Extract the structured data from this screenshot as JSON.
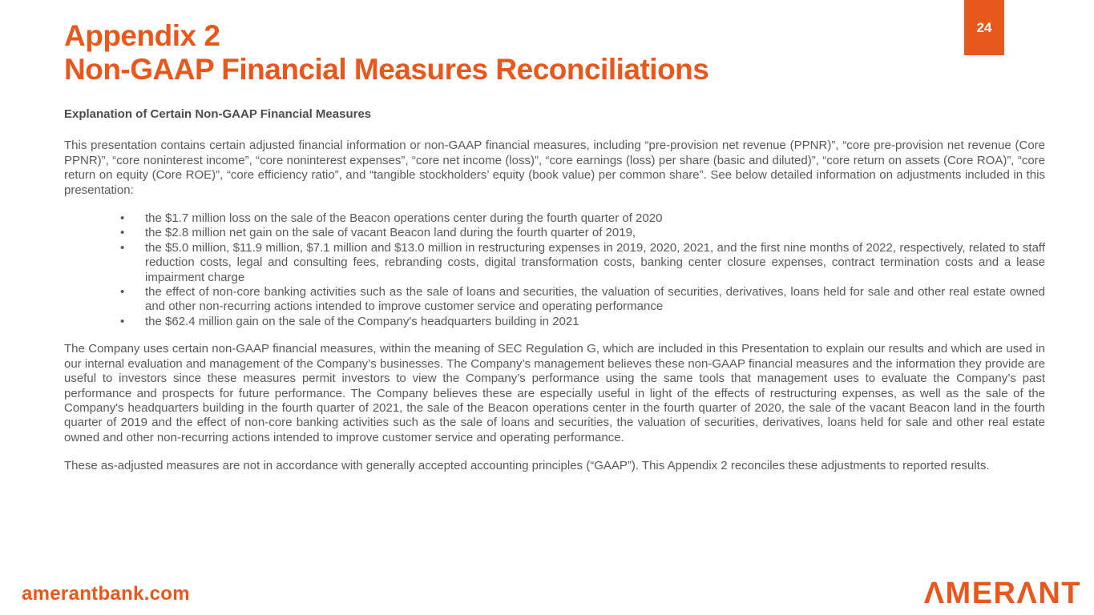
{
  "slide": {
    "page_number": "24",
    "title": {
      "line1": "Appendix 2",
      "line2": "Non-GAAP Financial Measures Reconciliations"
    },
    "heading": "Explanation of Certain Non-GAAP Financial Measures",
    "paragraphs": {
      "intro": "This presentation contains certain adjusted financial information or non-GAAP financial measures, including “pre-provision net revenue (PPNR)”, “core pre-provision net revenue (Core PPNR)”, “core noninterest income”, “core noninterest expenses”, “core net income (loss)”, “core earnings (loss) per share (basic and diluted)”, “core return on assets (Core ROA)”, “core return on equity (Core ROE)”, “core efficiency ratio”, and “tangible stockholders’ equity (book value) per common share”. See below detailed information on adjustments included in this presentation:",
      "usage": "The Company uses certain non-GAAP financial measures, within the meaning of SEC Regulation G, which are included in this Presentation to explain our results and which are used in our internal evaluation and management of the Company’s businesses. The Company’s management believes these non-GAAP financial measures and the information they provide are useful to investors since these measures permit investors to view the Company’s performance using the same tools that management uses to evaluate the Company’s past performance and prospects for future performance. The Company believes these are especially useful in light of the effects of restructuring expenses, as well as the sale of the Company's headquarters building in the fourth quarter of 2021, the sale of the Beacon operations center in the fourth quarter of 2020, the sale of the vacant Beacon land in the fourth quarter of 2019 and the effect of non-core banking activities such as the sale of loans and securities, the valuation of securities, derivatives, loans held for sale and other real estate owned and other non-recurring actions intended to improve customer service and operating performance.",
      "gaap": "These as-adjusted measures are not in accordance with generally accepted accounting principles (“GAAP”). This Appendix 2 reconciles these adjustments to reported results."
    },
    "bullets": [
      "the $1.7 million loss on the sale of the Beacon operations center during the fourth quarter of 2020",
      "the $2.8 million net gain on the sale of vacant Beacon land during the fourth quarter of 2019,",
      "the $5.0 million, $11.9 million, $7.1 million and $13.0 million in restructuring expenses in 2019, 2020, 2021, and the first nine months of 2022, respectively, related to staff reduction costs, legal and consulting fees, rebranding costs, digital transformation costs, banking center closure expenses, contract termination costs and a lease impairment charge",
      "the effect of non-core banking activities such as the sale of loans and securities, the valuation of securities, derivatives, loans held for sale and other real estate owned and other non-recurring actions intended to improve customer service and operating performance",
      "the $62.4 million gain on the sale of the Company's headquarters building in 2021"
    ],
    "footer": {
      "website": "amerantbank.com",
      "logo_text": "AMERANT",
      "logo_glyphs": "ΛMERΛNT"
    }
  },
  "colors": {
    "accent_orange": "#E8571C",
    "body_text": "#58595B",
    "heading_text": "#4D4D4F",
    "page_number_text": "#FFFFFF",
    "background": "#FFFFFF"
  }
}
